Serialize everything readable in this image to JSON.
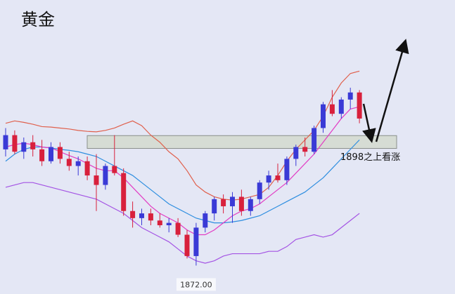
{
  "chart_data": {
    "type": "candlestick",
    "title": "黄金",
    "annotation": "1898之上看涨",
    "low_label": "1872.00",
    "ylim": [
      1866,
      1928
    ],
    "up_color": "#3a3ad6",
    "down_color": "#d8203c",
    "zone": [
      1896.7,
      1899.4
    ],
    "zone_color": "#d6dcd4",
    "open": [
      1896.5,
      1899.5,
      1896.0,
      1898.0,
      1896.5,
      1894.0,
      1897.0,
      1894.5,
      1893.0,
      1894.0,
      1891.0,
      1889.0,
      1893.0,
      1891.5,
      1883.5,
      1882.0,
      1883.0,
      1881.5,
      1880.5,
      1881.0,
      1878.5,
      1874.0,
      1880.0,
      1883.0,
      1886.0,
      1884.5,
      1886.5,
      1883.5,
      1886.0,
      1889.5,
      1891.0,
      1890.0,
      1894.5,
      1897.0,
      1896.0,
      1901.0,
      1906.0,
      1904.0,
      1907.0,
      1908.5
    ],
    "high": [
      1901.0,
      1900.5,
      1899.0,
      1899.5,
      1898.5,
      1898.0,
      1898.0,
      1896.0,
      1895.0,
      1895.0,
      1895.5,
      1893.5,
      1899.5,
      1892.5,
      1885.5,
      1884.0,
      1884.0,
      1883.0,
      1882.0,
      1882.0,
      1879.5,
      1881.0,
      1883.5,
      1886.5,
      1887.0,
      1887.5,
      1888.0,
      1886.5,
      1890.0,
      1892.0,
      1893.5,
      1895.0,
      1897.5,
      1899.0,
      1901.5,
      1906.5,
      1909.0,
      1907.5,
      1909.5,
      1909.0
    ],
    "low": [
      1895.0,
      1895.5,
      1894.5,
      1895.0,
      1893.0,
      1893.5,
      1893.5,
      1892.0,
      1891.0,
      1890.0,
      1883.5,
      1888.0,
      1891.0,
      1882.5,
      1880.0,
      1880.5,
      1880.5,
      1880.0,
      1879.0,
      1878.0,
      1873.5,
      1872.0,
      1879.0,
      1881.5,
      1883.0,
      1881.0,
      1882.5,
      1882.5,
      1885.0,
      1888.0,
      1889.5,
      1889.0,
      1893.0,
      1895.0,
      1895.5,
      1900.0,
      1903.5,
      1903.0,
      1905.0,
      1902.0
    ],
    "close": [
      1899.5,
      1896.0,
      1898.0,
      1896.5,
      1894.0,
      1897.0,
      1894.5,
      1893.0,
      1894.0,
      1891.0,
      1889.0,
      1893.0,
      1891.5,
      1883.5,
      1882.0,
      1883.0,
      1881.5,
      1880.5,
      1881.0,
      1878.5,
      1874.0,
      1880.0,
      1883.0,
      1886.0,
      1884.5,
      1886.5,
      1883.5,
      1886.0,
      1889.5,
      1891.0,
      1890.0,
      1894.5,
      1897.0,
      1896.0,
      1901.0,
      1906.0,
      1904.0,
      1907.0,
      1908.5,
      1903.0
    ],
    "lines": [
      {
        "color": "#e0604c",
        "values": [
          1902.0,
          1902.5,
          1902.2,
          1901.8,
          1901.3,
          1901.2,
          1901.0,
          1900.8,
          1900.5,
          1900.3,
          1900.2,
          1900.5,
          1901.0,
          1901.8,
          1902.5,
          1901.5,
          1899.5,
          1898.0,
          1896.0,
          1894.5,
          1892.0,
          1889.0,
          1887.5,
          1886.5,
          1886.0,
          1885.8,
          1886.0,
          1886.5,
          1887.0,
          1888.5,
          1891.0,
          1894.0,
          1896.5,
          1898.5,
          1900.5,
          1903.5,
          1907.5,
          1910.5,
          1912.5,
          1913.0
        ]
      },
      {
        "color": "#a454e4",
        "values": [
          1888.5,
          1889.0,
          1889.5,
          1889.5,
          1889.0,
          1888.5,
          1888.0,
          1887.5,
          1887.0,
          1886.5,
          1886.0,
          1885.0,
          1884.0,
          1883.0,
          1881.5,
          1880.0,
          1879.0,
          1878.0,
          1877.0,
          1875.5,
          1874.0,
          1873.0,
          1872.5,
          1873.0,
          1874.0,
          1874.5,
          1874.5,
          1874.5,
          1874.5,
          1875.0,
          1875.0,
          1876.0,
          1877.5,
          1878.0,
          1878.5,
          1878.0,
          1878.5,
          1880.0,
          1881.5,
          1883.0
        ]
      },
      {
        "color": "#2e8ee0",
        "values": [
          1894.0,
          1895.5,
          1896.5,
          1897.0,
          1897.0,
          1896.8,
          1896.5,
          1896.3,
          1896.0,
          1895.5,
          1895.0,
          1894.0,
          1893.0,
          1892.0,
          1891.0,
          1889.5,
          1888.0,
          1886.5,
          1885.0,
          1884.0,
          1883.0,
          1882.0,
          1881.5,
          1881.0,
          1881.0,
          1881.2,
          1881.5,
          1882.0,
          1882.5,
          1883.5,
          1884.5,
          1885.5,
          1886.5,
          1887.5,
          1889.0,
          1890.5,
          1892.5,
          1894.5,
          1896.5,
          1898.5
        ]
      },
      {
        "color": "#e23cc4",
        "values": [
          1897.0,
          1897.5,
          1897.8,
          1897.5,
          1897.0,
          1896.8,
          1896.0,
          1895.2,
          1894.5,
          1893.5,
          1892.5,
          1892.0,
          1892.0,
          1890.5,
          1888.5,
          1886.5,
          1884.5,
          1883.0,
          1882.0,
          1881.0,
          1879.5,
          1878.5,
          1878.5,
          1879.5,
          1881.0,
          1882.5,
          1883.5,
          1884.0,
          1885.0,
          1886.5,
          1888.0,
          1889.5,
          1891.5,
          1893.5,
          1895.5,
          1898.0,
          1900.5,
          1903.0,
          1905.0,
          1905.5
        ]
      }
    ]
  }
}
